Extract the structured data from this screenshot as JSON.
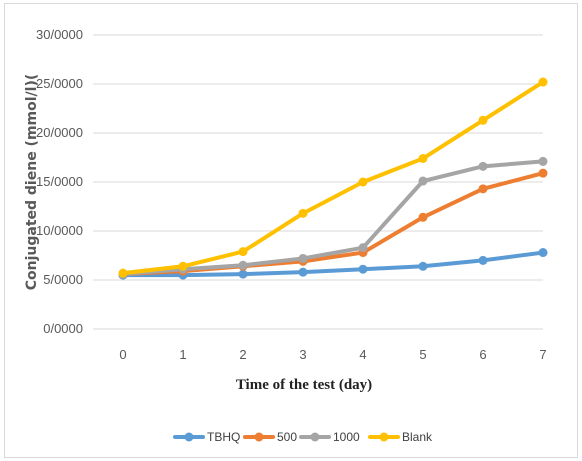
{
  "chart_data": {
    "type": "line",
    "title": "",
    "xlabel": "Time of the test (day)",
    "ylabel": "Conjugated diene (mmol/l)(",
    "x": [
      0,
      1,
      2,
      3,
      4,
      5,
      6,
      7
    ],
    "x_tick_labels": [
      "0",
      "1",
      "2",
      "3",
      "4",
      "5",
      "6",
      "7"
    ],
    "ylim": [
      0,
      30
    ],
    "y_ticks": [
      0,
      5,
      10,
      15,
      20,
      25,
      30
    ],
    "y_tick_labels": [
      "0/0000",
      "5/0000",
      "10/0000",
      "15/0000",
      "20/0000",
      "25/0000",
      "30/0000"
    ],
    "grid": "horizontal",
    "legend_position": "bottom",
    "series": [
      {
        "name": "TBHQ",
        "color": "#5B9BD5",
        "values": [
          5.5,
          5.5,
          5.6,
          5.8,
          6.1,
          6.4,
          7.0,
          7.8
        ]
      },
      {
        "name": "500",
        "color": "#ED7D31",
        "values": [
          5.6,
          5.9,
          6.4,
          6.9,
          7.8,
          11.4,
          14.3,
          15.9
        ]
      },
      {
        "name": "1000",
        "color": "#A5A5A5",
        "values": [
          5.6,
          6.1,
          6.5,
          7.2,
          8.3,
          15.1,
          16.6,
          17.1
        ]
      },
      {
        "name": "Blank",
        "color": "#FFC000",
        "values": [
          5.7,
          6.4,
          7.9,
          11.8,
          15.0,
          17.4,
          21.3,
          25.2
        ]
      }
    ]
  }
}
